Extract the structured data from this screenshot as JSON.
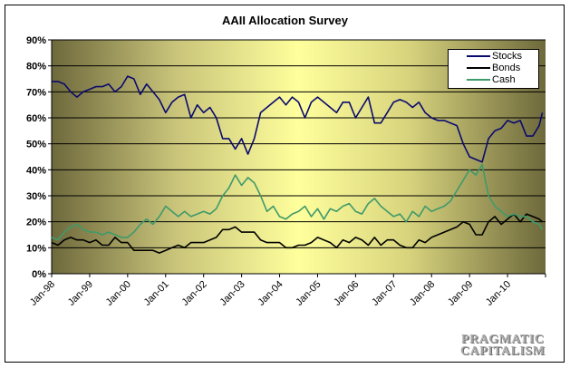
{
  "chart_data": {
    "type": "line",
    "title": "AAII Allocation Survey",
    "xlabel": "",
    "ylabel": "",
    "ylim": [
      0,
      90
    ],
    "yticks": [
      "0%",
      "10%",
      "20%",
      "30%",
      "40%",
      "50%",
      "60%",
      "70%",
      "80%",
      "90%"
    ],
    "xticks": [
      "Jan-98",
      "Jan-99",
      "Jan-00",
      "Jan-01",
      "Jan-02",
      "Jan-03",
      "Jan-04",
      "Jan-05",
      "Jan-06",
      "Jan-07",
      "Jan-08",
      "Jan-09",
      "Jan-10"
    ],
    "xlim": [
      "1998-01",
      "2010-12"
    ],
    "grid": true,
    "legend": "top-right",
    "x": [
      "1998-01",
      "1998-03",
      "1998-05",
      "1998-07",
      "1998-09",
      "1998-11",
      "1999-01",
      "1999-03",
      "1999-05",
      "1999-07",
      "1999-09",
      "1999-11",
      "2000-01",
      "2000-03",
      "2000-05",
      "2000-07",
      "2000-09",
      "2000-11",
      "2001-01",
      "2001-03",
      "2001-05",
      "2001-07",
      "2001-09",
      "2001-11",
      "2002-01",
      "2002-03",
      "2002-05",
      "2002-07",
      "2002-09",
      "2002-11",
      "2003-01",
      "2003-03",
      "2003-05",
      "2003-07",
      "2003-09",
      "2003-11",
      "2004-01",
      "2004-03",
      "2004-05",
      "2004-07",
      "2004-09",
      "2004-11",
      "2005-01",
      "2005-03",
      "2005-05",
      "2005-07",
      "2005-09",
      "2005-11",
      "2006-01",
      "2006-03",
      "2006-05",
      "2006-07",
      "2006-09",
      "2006-11",
      "2007-01",
      "2007-03",
      "2007-05",
      "2007-07",
      "2007-09",
      "2007-11",
      "2008-01",
      "2008-03",
      "2008-05",
      "2008-07",
      "2008-09",
      "2008-11",
      "2009-01",
      "2009-03",
      "2009-05",
      "2009-07",
      "2009-09",
      "2009-11",
      "2010-01",
      "2010-03",
      "2010-05",
      "2010-07",
      "2010-09",
      "2010-11",
      "2010-12"
    ],
    "series": [
      {
        "name": "Stocks",
        "color": "#0a0a6e",
        "values": [
          74,
          74,
          73,
          70,
          68,
          70,
          71,
          72,
          72,
          73,
          70,
          72,
          76,
          75,
          69,
          73,
          70,
          67,
          62,
          66,
          68,
          69,
          60,
          65,
          62,
          64,
          60,
          52,
          52,
          48,
          52,
          46,
          52,
          62,
          64,
          66,
          68,
          65,
          68,
          66,
          60,
          66,
          68,
          66,
          64,
          62,
          66,
          66,
          60,
          64,
          68,
          58,
          58,
          62,
          66,
          67,
          66,
          64,
          66,
          62,
          60,
          59,
          59,
          58,
          57,
          50,
          45,
          44,
          43,
          52,
          55,
          56,
          59,
          58,
          59,
          53,
          53,
          57,
          62
        ]
      },
      {
        "name": "Bonds",
        "color": "#000000",
        "values": [
          12,
          11,
          13,
          14,
          13,
          13,
          12,
          13,
          11,
          11,
          14,
          12,
          12,
          9,
          9,
          9,
          9,
          8,
          9,
          10,
          11,
          10,
          12,
          12,
          12,
          13,
          14,
          17,
          17,
          18,
          16,
          16,
          16,
          13,
          12,
          12,
          12,
          10,
          10,
          11,
          11,
          12,
          14,
          13,
          12,
          10,
          13,
          12,
          14,
          13,
          11,
          14,
          11,
          13,
          13,
          11,
          10,
          10,
          13,
          12,
          14,
          15,
          16,
          17,
          18,
          20,
          19,
          15,
          15,
          20,
          22,
          19,
          21,
          23,
          20,
          23,
          22,
          21,
          20
        ]
      },
      {
        "name": "Cash",
        "color": "#3f9a6a",
        "values": [
          14,
          13,
          16,
          18,
          19,
          17,
          16,
          16,
          15,
          16,
          15,
          14,
          14,
          16,
          19,
          21,
          19,
          22,
          26,
          24,
          22,
          24,
          22,
          23,
          24,
          23,
          25,
          30,
          33,
          38,
          34,
          37,
          35,
          30,
          24,
          26,
          22,
          21,
          23,
          24,
          26,
          22,
          25,
          21,
          25,
          24,
          26,
          27,
          24,
          23,
          27,
          29,
          26,
          24,
          22,
          23,
          20,
          24,
          22,
          26,
          24,
          25,
          26,
          28,
          32,
          36,
          40,
          38,
          42,
          30,
          26,
          24,
          22,
          23,
          22,
          22,
          20,
          19,
          17
        ]
      }
    ]
  },
  "watermark": {
    "line1": "PRAGMATIC",
    "line2": "CAPITALISM"
  }
}
